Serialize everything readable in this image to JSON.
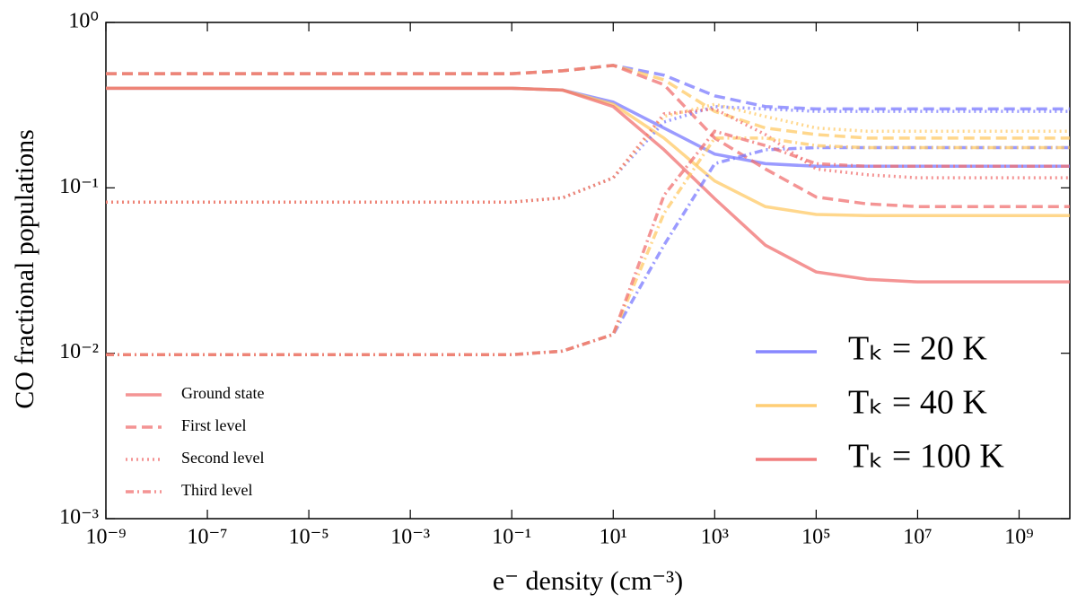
{
  "chart_data": {
    "type": "line",
    "xlabel": "e⁻ density (cm⁻³)",
    "ylabel": "CO fractional populations",
    "xscale": "log",
    "yscale": "log",
    "xlim": [
      1e-09,
      10000000000.0
    ],
    "ylim": [
      0.001,
      1
    ],
    "xticks": [
      {
        "value": 1e-09,
        "label": "10⁻⁹"
      },
      {
        "value": 1e-07,
        "label": "10⁻⁷"
      },
      {
        "value": 1e-05,
        "label": "10⁻⁵"
      },
      {
        "value": 0.001,
        "label": "10⁻³"
      },
      {
        "value": 0.1,
        "label": "10⁻¹"
      },
      {
        "value": 10,
        "label": "10¹"
      },
      {
        "value": 1000,
        "label": "10³"
      },
      {
        "value": 100000,
        "label": "10⁵"
      },
      {
        "value": 10000000,
        "label": "10⁷"
      },
      {
        "value": 1000000000,
        "label": "10⁹"
      }
    ],
    "yticks": [
      {
        "value": 0.001,
        "label": "10⁻³"
      },
      {
        "value": 0.01,
        "label": "10⁻²"
      },
      {
        "value": 0.1,
        "label": "10⁻¹"
      },
      {
        "value": 1,
        "label": "10⁰"
      }
    ],
    "x": [
      1e-09,
      0.1,
      1,
      10,
      100,
      1000,
      10000,
      100000,
      1000000,
      10000000,
      100000000,
      1000000000,
      10000000000
    ],
    "series": [
      {
        "color": "#7a7aff",
        "linestyle": "solid",
        "values": [
          0.4,
          0.4,
          0.39,
          0.33,
          0.23,
          0.16,
          0.14,
          0.135,
          0.135,
          0.135,
          0.135,
          0.135,
          0.135
        ]
      },
      {
        "color": "#ffc966",
        "linestyle": "solid",
        "values": [
          0.4,
          0.4,
          0.39,
          0.32,
          0.2,
          0.11,
          0.077,
          0.069,
          0.068,
          0.068,
          0.068,
          0.068,
          0.068
        ]
      },
      {
        "color": "#f07070",
        "linestyle": "solid",
        "values": [
          0.4,
          0.4,
          0.39,
          0.31,
          0.17,
          0.086,
          0.045,
          0.031,
          0.028,
          0.027,
          0.027,
          0.027,
          0.027
        ]
      },
      {
        "color": "#7a7aff",
        "linestyle": "dashed",
        "values": [
          0.49,
          0.49,
          0.51,
          0.55,
          0.48,
          0.36,
          0.31,
          0.3,
          0.3,
          0.3,
          0.3,
          0.3,
          0.3
        ]
      },
      {
        "color": "#ffc966",
        "linestyle": "dashed",
        "values": [
          0.49,
          0.49,
          0.51,
          0.55,
          0.45,
          0.29,
          0.23,
          0.21,
          0.2,
          0.2,
          0.2,
          0.2,
          0.2
        ]
      },
      {
        "color": "#f07070",
        "linestyle": "dashed",
        "values": [
          0.49,
          0.49,
          0.51,
          0.55,
          0.42,
          0.2,
          0.13,
          0.088,
          0.08,
          0.077,
          0.077,
          0.077,
          0.077
        ]
      },
      {
        "color": "#7a7aff",
        "linestyle": "dotted",
        "values": [
          0.082,
          0.082,
          0.087,
          0.115,
          0.25,
          0.31,
          0.3,
          0.29,
          0.29,
          0.29,
          0.29,
          0.29,
          0.29
        ]
      },
      {
        "color": "#ffc966",
        "linestyle": "dotted",
        "values": [
          0.082,
          0.082,
          0.087,
          0.115,
          0.27,
          0.32,
          0.27,
          0.23,
          0.22,
          0.22,
          0.22,
          0.22,
          0.22
        ]
      },
      {
        "color": "#f07070",
        "linestyle": "dotted",
        "values": [
          0.082,
          0.082,
          0.087,
          0.115,
          0.28,
          0.3,
          0.21,
          0.13,
          0.12,
          0.115,
          0.115,
          0.115,
          0.115
        ]
      },
      {
        "color": "#7a7aff",
        "linestyle": "dashdot",
        "values": [
          0.0098,
          0.0098,
          0.0103,
          0.013,
          0.045,
          0.14,
          0.17,
          0.175,
          0.175,
          0.175,
          0.175,
          0.175,
          0.175
        ]
      },
      {
        "color": "#ffc966",
        "linestyle": "dashdot",
        "values": [
          0.0098,
          0.0098,
          0.0103,
          0.013,
          0.07,
          0.2,
          0.2,
          0.18,
          0.175,
          0.175,
          0.175,
          0.175,
          0.175
        ]
      },
      {
        "color": "#f07070",
        "linestyle": "dashdot",
        "values": [
          0.0098,
          0.0098,
          0.0103,
          0.013,
          0.09,
          0.22,
          0.18,
          0.14,
          0.135,
          0.135,
          0.135,
          0.135,
          0.135
        ]
      }
    ],
    "style_legend": {
      "loc": "lower left",
      "color": "#f07070",
      "entries": [
        {
          "name": "Ground state",
          "linestyle": "solid"
        },
        {
          "name": "First level",
          "linestyle": "dashed"
        },
        {
          "name": "Second level",
          "linestyle": "dotted"
        },
        {
          "name": "Third level",
          "linestyle": "dashdot"
        }
      ]
    },
    "color_legend": {
      "loc": "lower right",
      "entries": [
        {
          "name": "Tₖ = 20 K",
          "color": "#7a7aff"
        },
        {
          "name": "Tₖ = 40 K",
          "color": "#ffc966"
        },
        {
          "name": "Tₖ = 100 K",
          "color": "#f07070"
        }
      ]
    }
  }
}
